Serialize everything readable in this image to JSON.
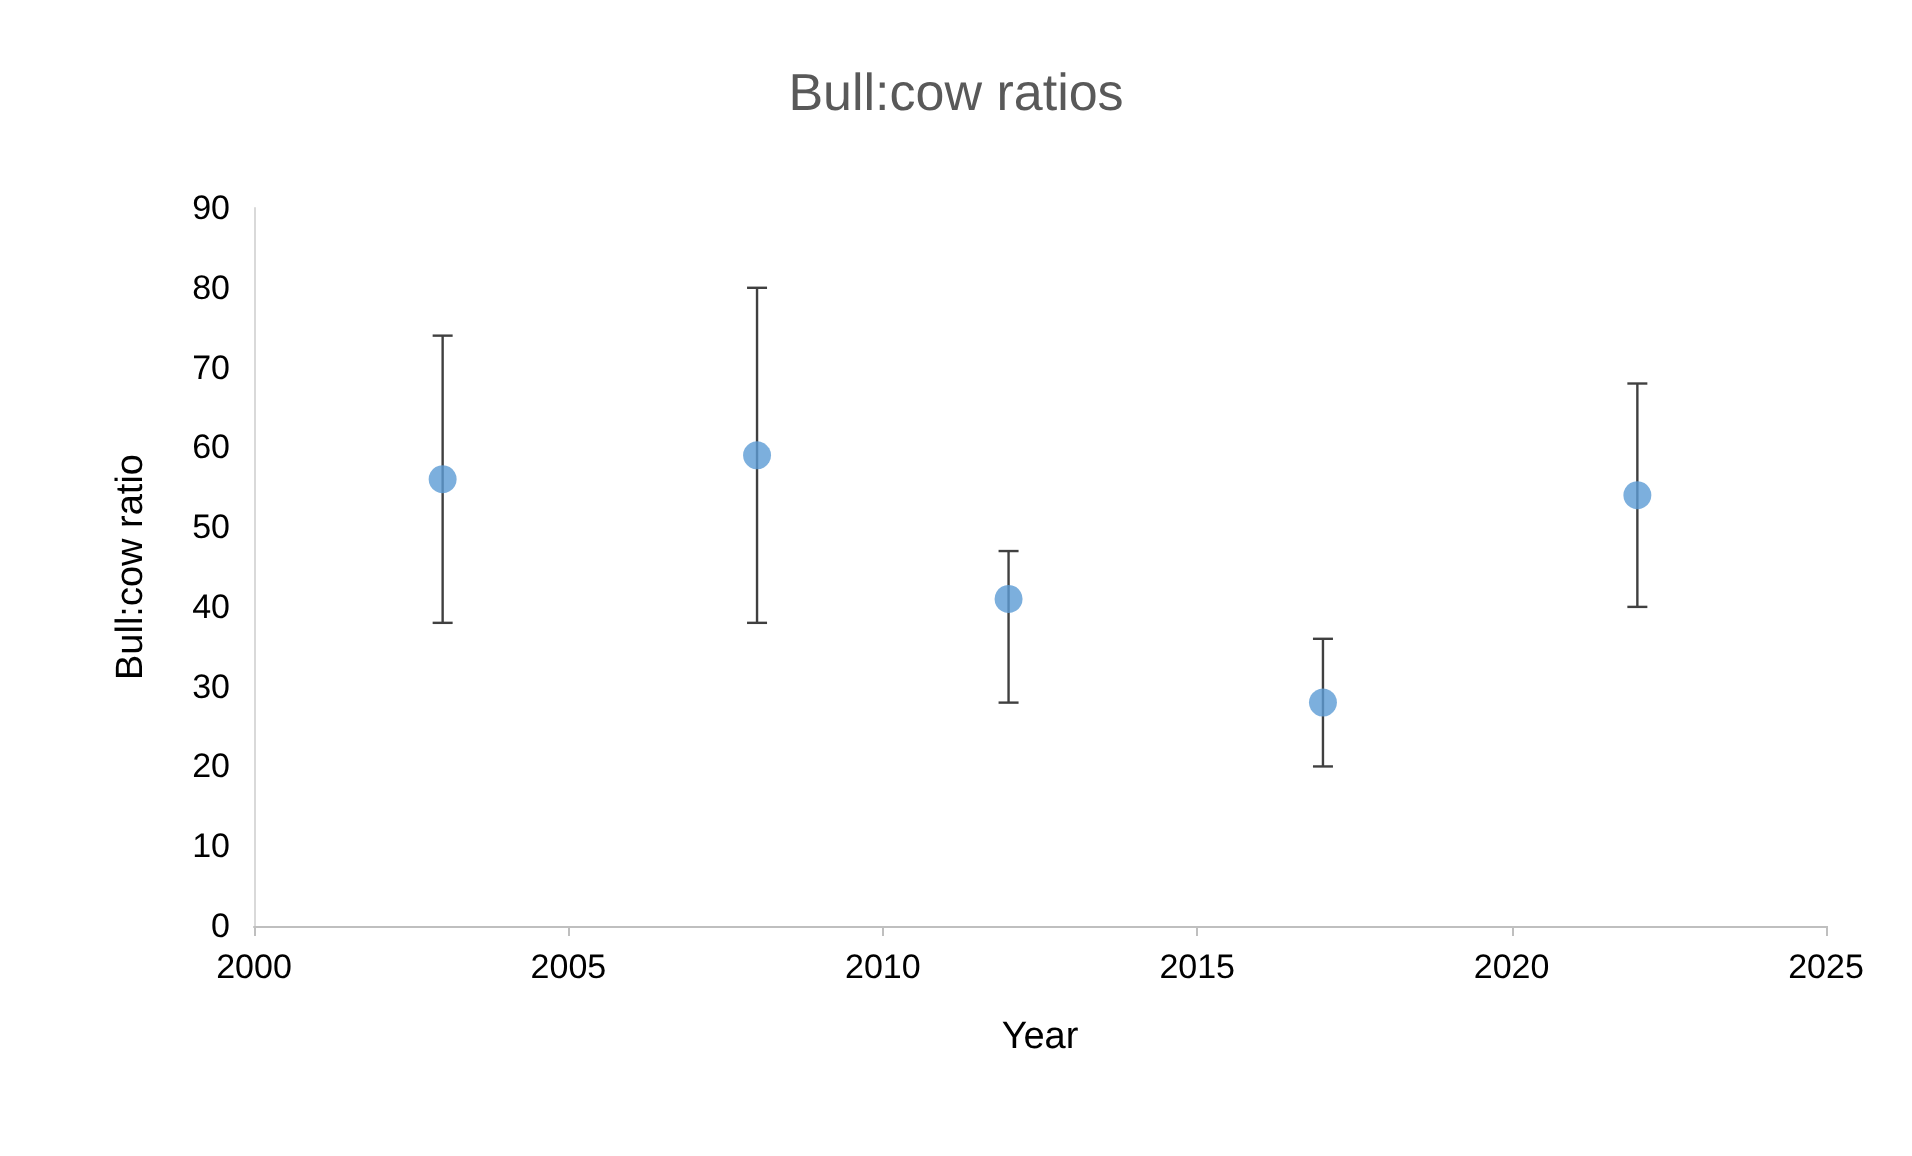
{
  "chart_data": {
    "type": "scatter",
    "title": "Bull:cow ratios",
    "xlabel": "Year",
    "ylabel": "Bull:cow ratio",
    "x": [
      2003,
      2008,
      2012,
      2017,
      2022
    ],
    "values": [
      56,
      59,
      41,
      28,
      54
    ],
    "errors": [
      [
        38,
        74
      ],
      [
        38,
        80
      ],
      [
        28,
        47
      ],
      [
        20,
        36
      ],
      [
        40,
        68
      ]
    ],
    "color": "#5b9bd5",
    "marker": "circle",
    "xlim": [
      2000,
      2025
    ],
    "xticks": [
      2000,
      2005,
      2010,
      2015,
      2020,
      2025
    ],
    "ylim": [
      0,
      90
    ],
    "yticks": [
      0,
      10,
      20,
      30,
      40,
      50,
      60,
      70,
      80,
      90
    ],
    "grid": false
  }
}
